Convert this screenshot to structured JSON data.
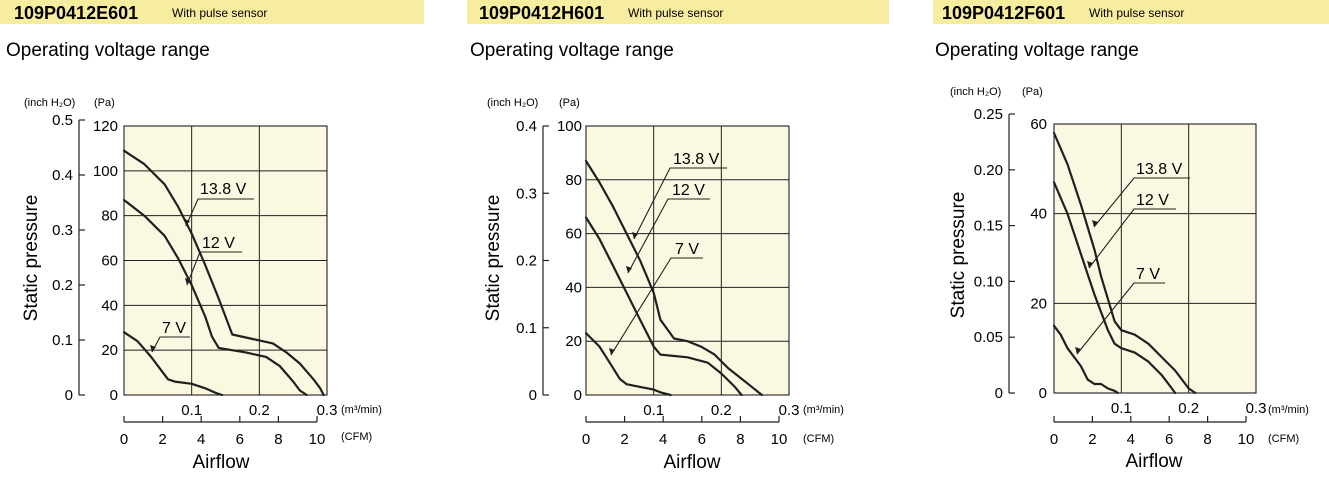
{
  "chart_data": [
    {
      "type": "line",
      "model": "109P0412E601",
      "model_note": "With pulse sensor",
      "section_title": "Operating voltage range",
      "ylabel": "Static pressure",
      "xlabel": "Airflow",
      "y_unit_inch": "(inch H₂O)",
      "y_unit_pa": "(Pa)",
      "x_unit_m3": "(m³/min)",
      "x_unit_cfm": "(CFM)",
      "xlim": [
        0,
        0.3
      ],
      "ylim": [
        0,
        120
      ],
      "xticks": [
        "0.1",
        "0.2",
        "0.3"
      ],
      "yticks_pa": [
        "0",
        "20",
        "40",
        "60",
        "80",
        "100",
        "120"
      ],
      "yticks_inch": [
        "0",
        "0.1",
        "0.2",
        "0.3",
        "0.4",
        "0.5"
      ],
      "cfm_ticks": [
        "0",
        "2",
        "4",
        "6",
        "8",
        "10"
      ],
      "grid": true,
      "series": [
        {
          "name": "13.8 V",
          "x": [
            0,
            0.03,
            0.06,
            0.08,
            0.1,
            0.12,
            0.14,
            0.16,
            0.19,
            0.22,
            0.24,
            0.26,
            0.28,
            0.29,
            0.295
          ],
          "y": [
            109,
            103,
            94,
            84,
            72,
            58,
            43,
            27,
            25,
            23,
            19,
            14,
            7,
            3,
            0
          ]
        },
        {
          "name": "12 V",
          "x": [
            0,
            0.03,
            0.06,
            0.08,
            0.1,
            0.12,
            0.13,
            0.14,
            0.18,
            0.21,
            0.23,
            0.25,
            0.26,
            0.27
          ],
          "y": [
            87,
            80,
            71,
            61,
            49,
            35,
            26,
            21,
            19,
            17,
            13,
            6,
            2,
            0
          ]
        },
        {
          "name": "7 V",
          "x": [
            0,
            0.02,
            0.04,
            0.055,
            0.065,
            0.075,
            0.1,
            0.12,
            0.135,
            0.145
          ],
          "y": [
            28,
            24,
            17,
            11,
            7,
            6,
            5,
            3,
            1,
            0
          ]
        }
      ],
      "series_labels": [
        "13.8 V",
        "12 V",
        "7 V"
      ]
    },
    {
      "type": "line",
      "model": "109P0412H601",
      "model_note": "With pulse sensor",
      "section_title": "Operating voltage range",
      "ylabel": "Static pressure",
      "xlabel": "Airflow",
      "y_unit_inch": "(inch H₂O)",
      "y_unit_pa": "(Pa)",
      "x_unit_m3": "(m³/min)",
      "x_unit_cfm": "(CFM)",
      "xlim": [
        0,
        0.3
      ],
      "ylim": [
        0,
        100
      ],
      "xticks": [
        "0.1",
        "0.2",
        "0.3"
      ],
      "yticks_pa": [
        "0",
        "20",
        "40",
        "60",
        "80",
        "100"
      ],
      "yticks_inch": [
        "0",
        "0.1",
        "0.2",
        "0.3",
        "0.4"
      ],
      "cfm_ticks": [
        "0",
        "2",
        "4",
        "6",
        "8",
        "10"
      ],
      "grid": true,
      "series": [
        {
          "name": "13.8 V",
          "x": [
            0,
            0.02,
            0.04,
            0.06,
            0.08,
            0.09,
            0.1,
            0.11,
            0.13,
            0.15,
            0.17,
            0.19,
            0.21,
            0.24,
            0.26
          ],
          "y": [
            87,
            79,
            70,
            60,
            50,
            44,
            38,
            28,
            21,
            20,
            18,
            15,
            10,
            4,
            0
          ]
        },
        {
          "name": "12 V",
          "x": [
            0,
            0.02,
            0.04,
            0.06,
            0.08,
            0.1,
            0.11,
            0.15,
            0.18,
            0.2,
            0.22,
            0.23
          ],
          "y": [
            66,
            58,
            48,
            38,
            28,
            18,
            15,
            14,
            12,
            8,
            3,
            0
          ]
        },
        {
          "name": "7 V",
          "x": [
            0,
            0.02,
            0.03,
            0.04,
            0.05,
            0.06,
            0.08,
            0.1,
            0.11,
            0.125
          ],
          "y": [
            23,
            18,
            14,
            10,
            6,
            4,
            3,
            2,
            1,
            0
          ]
        }
      ],
      "series_labels": [
        "13.8 V",
        "12 V",
        "7 V"
      ]
    },
    {
      "type": "line",
      "model": "109P0412F601",
      "model_note": "With pulse sensor",
      "section_title": "Operating voltage range",
      "ylabel": "Static pressure",
      "xlabel": "Airflow",
      "y_unit_inch": "(inch H₂O)",
      "y_unit_pa": "(Pa)",
      "x_unit_m3": "(m³/min)",
      "x_unit_cfm": "(CFM)",
      "xlim": [
        0,
        0.3
      ],
      "ylim": [
        0,
        60
      ],
      "xticks": [
        "0.1",
        "0.2",
        "0.3"
      ],
      "yticks_pa": [
        "0",
        "20",
        "40",
        "60"
      ],
      "yticks_inch": [
        "0",
        "0.05",
        "0.10",
        "0.15",
        "0.20",
        "0.25"
      ],
      "cfm_ticks": [
        "0",
        "2",
        "4",
        "6",
        "8",
        "10"
      ],
      "grid": true,
      "series": [
        {
          "name": "13.8 V",
          "x": [
            0,
            0.02,
            0.04,
            0.06,
            0.07,
            0.08,
            0.09,
            0.1,
            0.12,
            0.14,
            0.16,
            0.18,
            0.2,
            0.21
          ],
          "y": [
            58,
            51,
            42,
            32,
            26,
            21,
            16,
            14,
            13,
            11,
            8,
            5,
            1,
            0
          ]
        },
        {
          "name": "12 V",
          "x": [
            0,
            0.02,
            0.04,
            0.06,
            0.08,
            0.09,
            0.1,
            0.12,
            0.14,
            0.16,
            0.17,
            0.18
          ],
          "y": [
            47,
            40,
            31,
            22,
            14,
            11,
            10,
            9,
            7,
            4,
            2,
            0
          ]
        },
        {
          "name": "7 V",
          "x": [
            0,
            0.01,
            0.02,
            0.04,
            0.05,
            0.06,
            0.07,
            0.08,
            0.09,
            0.095
          ],
          "y": [
            15,
            13,
            10,
            6,
            3,
            2,
            2,
            1,
            0.5,
            0
          ]
        }
      ],
      "series_labels": [
        "13.8 V",
        "12 V",
        "7 V"
      ]
    }
  ]
}
